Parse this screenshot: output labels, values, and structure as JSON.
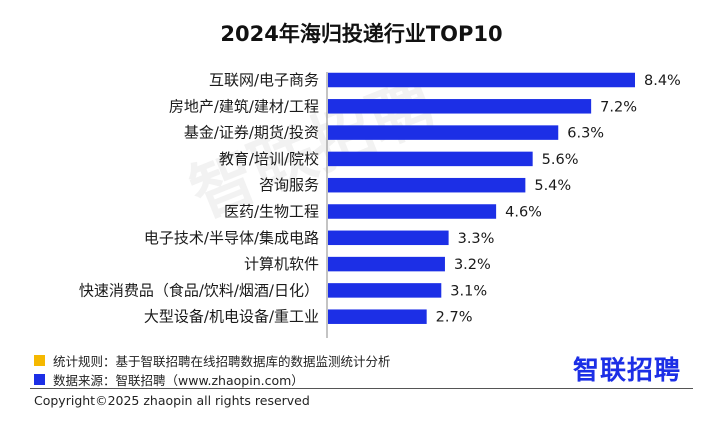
{
  "chart_data": {
    "type": "bar",
    "orientation": "horizontal",
    "title": "2024年海归投递行业TOP10",
    "categories": [
      "互联网/电子商务",
      "房地产/建筑/建材/工程",
      "基金/证券/期货/投资",
      "教育/培训/院校",
      "咨询服务",
      "医药/生物工程",
      "电子技术/半导体/集成电路",
      "计算机软件",
      "快速消费品（食品/饮料/烟酒/日化）",
      "大型设备/机电设备/重工业"
    ],
    "values": [
      8.4,
      7.2,
      6.3,
      5.6,
      5.4,
      4.6,
      3.3,
      3.2,
      3.1,
      2.7
    ],
    "value_labels": [
      "8.4%",
      "7.2%",
      "6.3%",
      "5.6%",
      "5.4%",
      "4.6%",
      "3.3%",
      "3.2%",
      "3.1%",
      "2.7%"
    ],
    "xlim": [
      0,
      8.4
    ],
    "grid": false,
    "bar_color": "#1c2fe6"
  },
  "footnotes": {
    "rule_text": "统计规则：基于智联招聘在线招聘数据库的数据监测统计分析",
    "rule_color": "#f5b800",
    "source_text": "数据来源：智联招聘（www.zhaopin.com）",
    "source_color": "#1c2fe6"
  },
  "brand": {
    "logo_text": "智联招聘",
    "color": "#1c2fe6"
  },
  "watermark": {
    "text": "智联招聘"
  },
  "copyright": "Copyright©2025 zhaopin all rights reserved"
}
